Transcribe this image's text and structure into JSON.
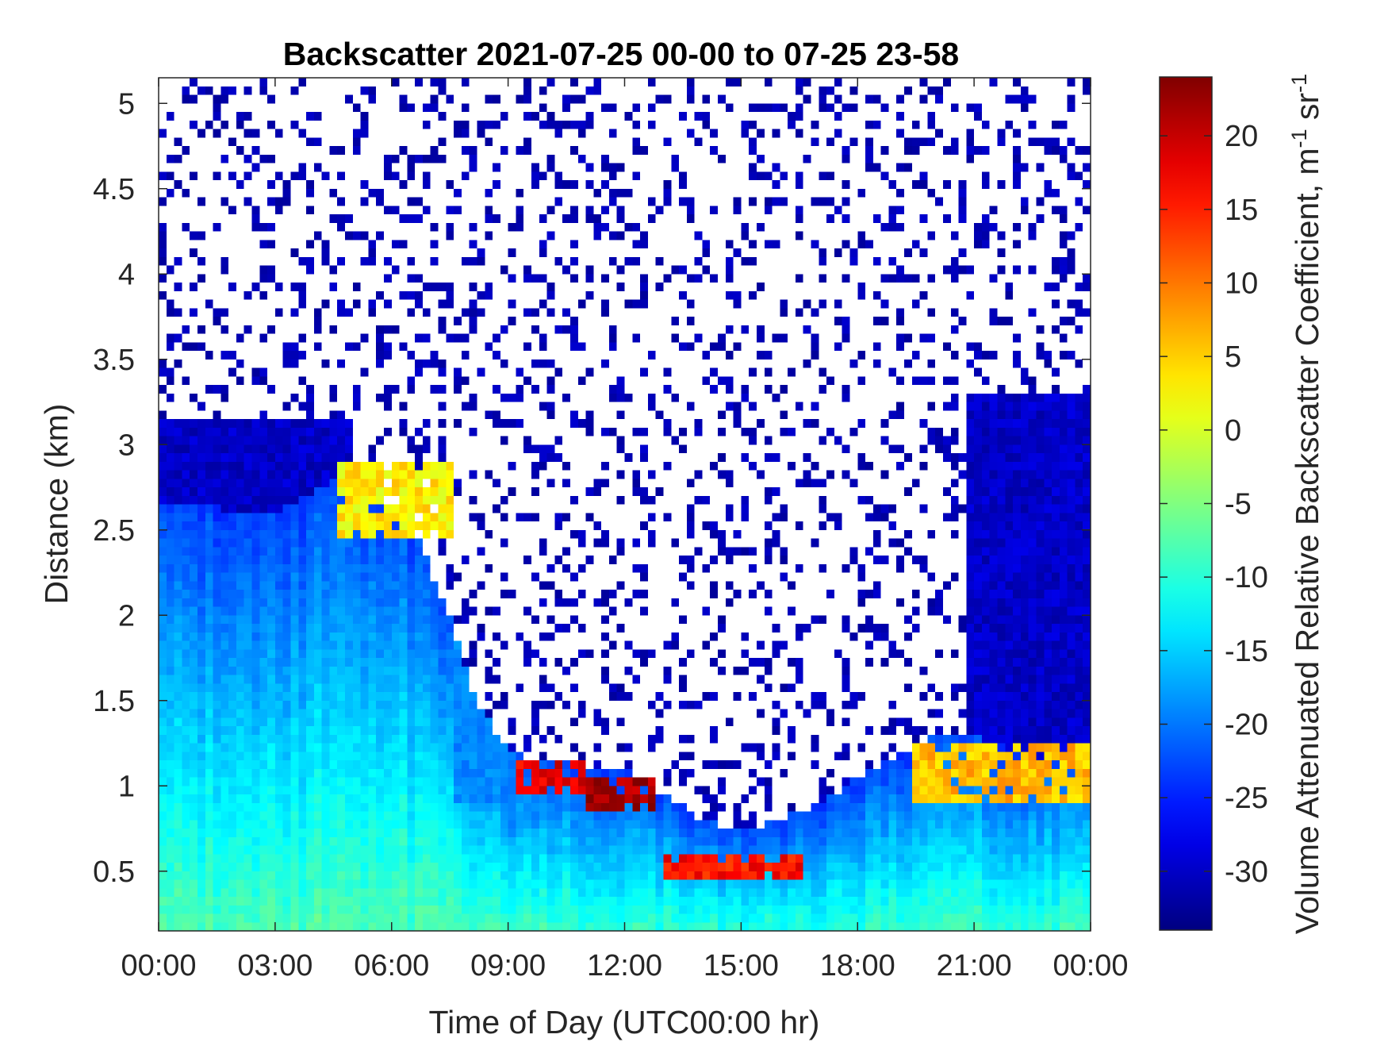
{
  "chart_data": {
    "type": "heatmap",
    "title": "Backscatter 2021-07-25 00-00 to 07-25 23-58",
    "xlabel": "Time of Day (UTC00:00 hr)",
    "ylabel": "Distance (km)",
    "colorbar_label": "Volume Attenuated Relative Backscatter Coefficient, m",
    "colorbar_units_suffix": " sr",
    "colorbar_exponent": "-1",
    "colormap": "jet",
    "xlim": [
      0,
      24
    ],
    "ylim": [
      0.15,
      5.15
    ],
    "clim": [
      -34,
      24
    ],
    "x_ticks": [
      {
        "value": 0,
        "label": "00:00"
      },
      {
        "value": 3,
        "label": "03:00"
      },
      {
        "value": 6,
        "label": "06:00"
      },
      {
        "value": 9,
        "label": "09:00"
      },
      {
        "value": 12,
        "label": "12:00"
      },
      {
        "value": 15,
        "label": "15:00"
      },
      {
        "value": 18,
        "label": "18:00"
      },
      {
        "value": 21,
        "label": "21:00"
      },
      {
        "value": 24,
        "label": "00:00"
      }
    ],
    "y_ticks": [
      {
        "value": 0.5,
        "label": "0.5"
      },
      {
        "value": 1,
        "label": "1"
      },
      {
        "value": 1.5,
        "label": "1.5"
      },
      {
        "value": 2,
        "label": "2"
      },
      {
        "value": 2.5,
        "label": "2.5"
      },
      {
        "value": 3,
        "label": "3"
      },
      {
        "value": 3.5,
        "label": "3.5"
      },
      {
        "value": 4,
        "label": "4"
      },
      {
        "value": 4.5,
        "label": "4.5"
      },
      {
        "value": 5,
        "label": "5"
      }
    ],
    "colorbar_ticks": [
      {
        "value": -30,
        "label": "-30"
      },
      {
        "value": -25,
        "label": "-25"
      },
      {
        "value": -20,
        "label": "-20"
      },
      {
        "value": -15,
        "label": "-15"
      },
      {
        "value": -10,
        "label": "-10"
      },
      {
        "value": -5,
        "label": "-5"
      },
      {
        "value": 0,
        "label": "0"
      },
      {
        "value": 5,
        "label": "5"
      },
      {
        "value": 10,
        "label": "10"
      },
      {
        "value": 15,
        "label": "15"
      },
      {
        "value": 20,
        "label": "20"
      }
    ],
    "grid_resolution": {
      "time_step_hr": 0.2,
      "distance_step_km": 0.05
    },
    "features": {
      "blank_where_no_signal": true,
      "mixed_layer_top_km": [
        [
          0,
          2.65
        ],
        [
          3,
          2.6
        ],
        [
          4.5,
          2.8
        ],
        [
          5.5,
          2.7
        ],
        [
          6.5,
          2.55
        ],
        [
          7.5,
          2.0
        ],
        [
          8.2,
          1.5
        ],
        [
          9,
          1.2
        ],
        [
          10,
          1.15
        ],
        [
          12,
          1.1
        ],
        [
          13,
          0.95
        ],
        [
          14,
          0.8
        ],
        [
          15,
          0.75
        ],
        [
          16,
          0.8
        ],
        [
          17,
          0.9
        ],
        [
          18,
          1.05
        ],
        [
          20,
          1.3
        ],
        [
          21,
          1.3
        ],
        [
          22,
          1.2
        ],
        [
          24,
          1.1
        ]
      ],
      "cloud_layers": [
        {
          "t_start": 4.7,
          "t_end": 7.5,
          "top_km": 2.9,
          "bottom_km": 2.45,
          "value": 3
        },
        {
          "t_start": 9.2,
          "t_end": 11.0,
          "top_km": 1.15,
          "bottom_km": 0.95,
          "value": 18
        },
        {
          "t_start": 11.0,
          "t_end": 12.8,
          "top_km": 1.05,
          "bottom_km": 0.85,
          "value": 22
        },
        {
          "t_start": 13.0,
          "t_end": 16.5,
          "top_km": 0.6,
          "bottom_km": 0.45,
          "value": 16
        },
        {
          "t_start": 19.5,
          "t_end": 24.0,
          "top_km": 1.25,
          "bottom_km": 0.9,
          "value": 6
        }
      ],
      "dry_layer_top_km": {
        "morning": 3.15,
        "evening": 3.3
      }
    }
  }
}
